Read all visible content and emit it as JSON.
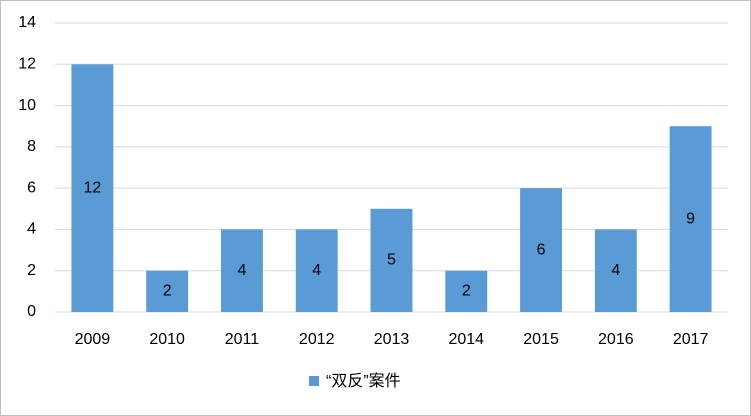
{
  "chart_data": {
    "type": "bar",
    "categories": [
      "2009",
      "2010",
      "2011",
      "2012",
      "2013",
      "2014",
      "2015",
      "2016",
      "2017"
    ],
    "series": [
      {
        "name": "“双反”案件",
        "color": "#5b9bd5",
        "values": [
          12,
          2,
          4,
          4,
          5,
          2,
          6,
          4,
          9
        ]
      }
    ],
    "ylim": [
      0,
      14
    ],
    "yticks": [
      0,
      2,
      4,
      6,
      8,
      10,
      12,
      14
    ],
    "grid": true,
    "data_labels": true,
    "legend": "bottom"
  }
}
